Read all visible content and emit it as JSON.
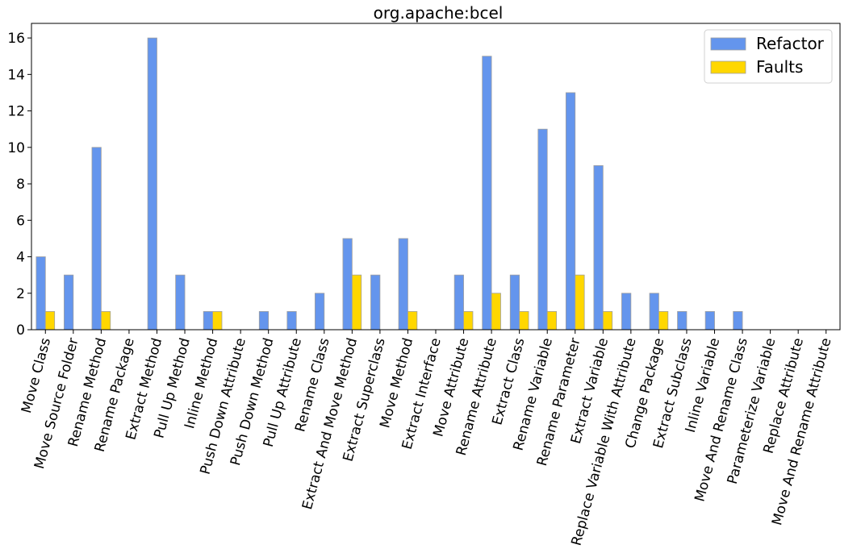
{
  "chart_data": {
    "type": "bar",
    "title": "org.apache:bcel",
    "xlabel": "",
    "ylabel": "",
    "ylim": [
      0,
      16.8
    ],
    "yticks": [
      0,
      2,
      4,
      6,
      8,
      10,
      12,
      14,
      16
    ],
    "grid": false,
    "legend_position": "top-right",
    "categories": [
      "Move Class",
      "Move Source Folder",
      "Rename Method",
      "Rename Package",
      "Extract Method",
      "Pull Up Method",
      "Inline Method",
      "Push Down Attribute",
      "Push Down Method",
      "Pull Up Attribute",
      "Rename Class",
      "Extract And Move Method",
      "Extract Superclass",
      "Move Method",
      "Extract Interface",
      "Move Attribute",
      "Rename Attribute",
      "Extract Class",
      "Rename Variable",
      "Rename Parameter",
      "Extract Variable",
      "Replace Variable With Attribute",
      "Change Package",
      "Extract Subclass",
      "Inline Variable",
      "Move And Rename Class",
      "Parameterize Variable",
      "Replace Attribute",
      "Move And Rename Attribute"
    ],
    "series": [
      {
        "name": "Refactor",
        "color": "#6495ED",
        "values": [
          4,
          3,
          10,
          0,
          16,
          3,
          1,
          0,
          1,
          1,
          2,
          5,
          3,
          5,
          0,
          3,
          15,
          3,
          11,
          13,
          9,
          2,
          2,
          1,
          1,
          1,
          0,
          0,
          0
        ]
      },
      {
        "name": "Faults",
        "color": "#FFD700",
        "values": [
          1,
          0,
          1,
          0,
          0,
          0,
          1,
          0,
          0,
          0,
          0,
          3,
          0,
          1,
          0,
          1,
          2,
          1,
          1,
          3,
          1,
          0,
          1,
          0,
          0,
          0,
          0,
          0,
          0
        ]
      }
    ]
  }
}
